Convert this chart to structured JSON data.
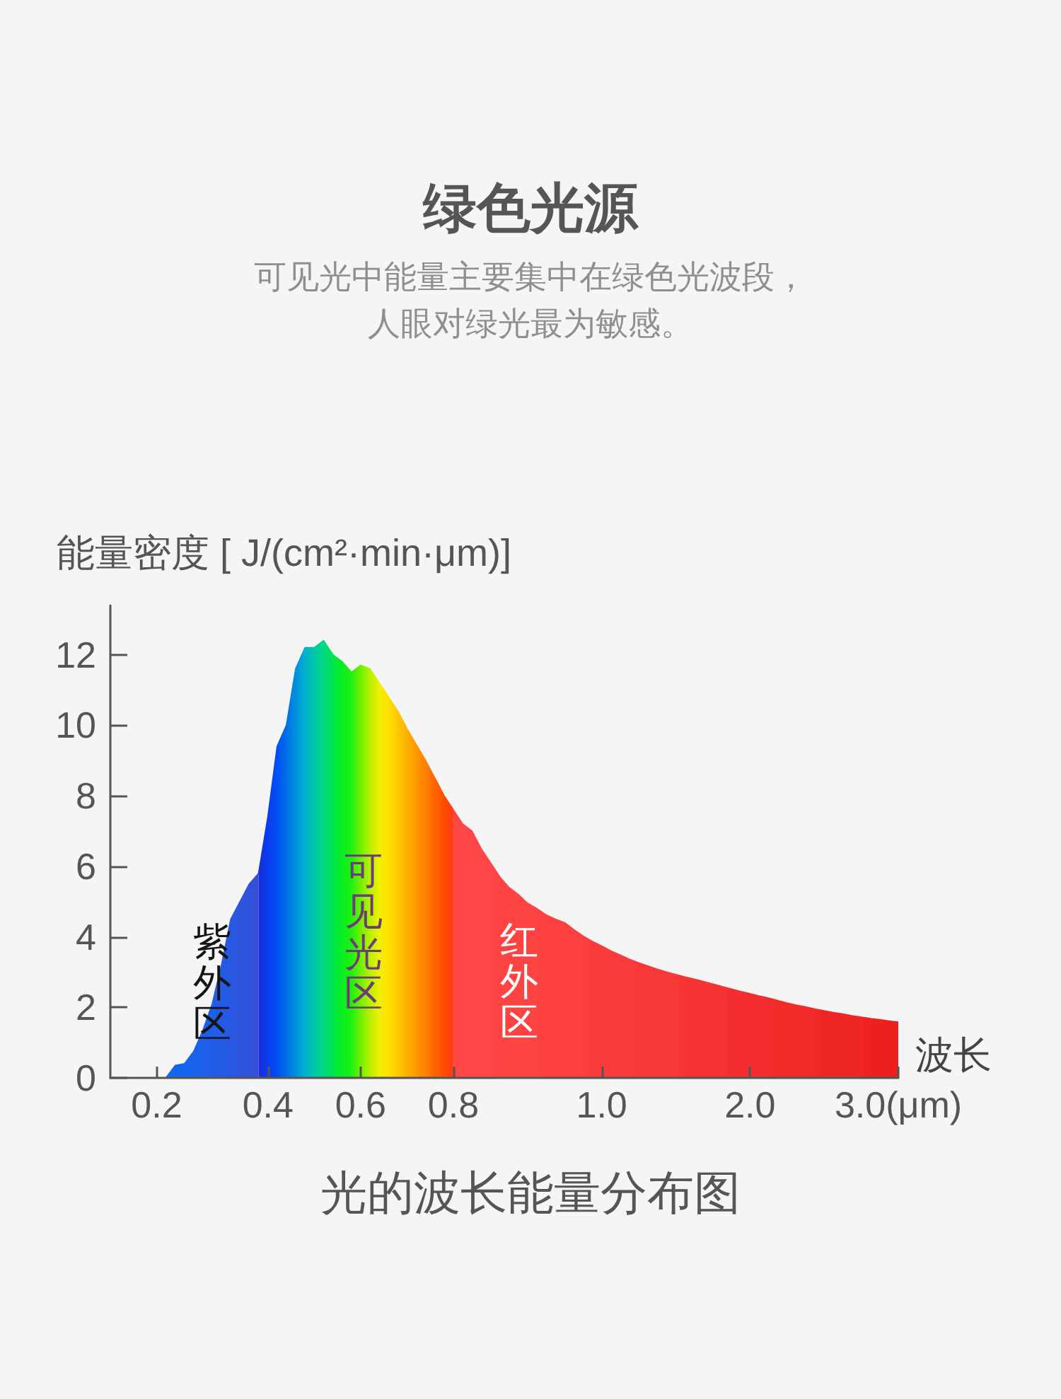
{
  "chart_data": {
    "type": "area",
    "title": "绿色光源",
    "subtitle": "可见光中能量主要集中在绿色光波段，人眼对绿光最为敏感。",
    "ylabel": "能量密度 [ J/(cm²·min·μm)]",
    "xlabel": "波长",
    "annotations": [
      "光的波长能量分布图"
    ],
    "categories": [
      null,
      null,
      null,
      null,
      null,
      "0.2",
      null,
      null,
      null,
      null,
      null,
      null,
      null,
      null,
      null,
      null,
      null,
      "0.4",
      null,
      null,
      null,
      null,
      null,
      null,
      null,
      null,
      null,
      "0.6",
      null,
      null,
      null,
      null,
      null,
      null,
      null,
      null,
      null,
      "0.8",
      null,
      null,
      null,
      null,
      null,
      null,
      null,
      null,
      null,
      null,
      null,
      null,
      null,
      null,
      null,
      "1.0",
      null,
      null,
      null,
      null,
      null,
      null,
      null,
      null,
      null,
      null,
      null,
      null,
      null,
      null,
      null,
      "2.0",
      null,
      null,
      null,
      null,
      null,
      null,
      null,
      null,
      null,
      null,
      null,
      null,
      null,
      null,
      null,
      "3.0(μm)"
    ],
    "series": [
      {
        "name": "紫外区",
        "values": [
          null,
          null,
          null,
          null,
          null,
          null,
          0,
          0.35,
          0.4,
          0.75,
          1.35,
          2.1,
          3.2,
          4.5,
          5.0,
          5.5,
          5.8,
          null,
          null,
          null,
          null,
          null,
          null,
          null,
          null,
          null,
          null,
          null,
          null,
          null,
          null,
          null,
          null,
          null,
          null,
          null,
          null,
          null,
          null,
          null,
          null,
          null,
          null,
          null,
          null,
          null,
          null,
          null,
          null,
          null,
          null,
          null,
          null,
          null,
          null,
          null,
          null,
          null,
          null,
          null,
          null,
          null,
          null,
          null,
          null,
          null,
          null,
          null,
          null,
          null,
          null,
          null,
          null,
          null,
          null,
          null,
          null,
          null,
          null,
          null,
          null,
          null,
          null,
          null,
          null,
          null
        ],
        "colors": [
          null,
          null,
          null,
          null,
          null,
          null,
          "#0d68f2",
          "#1066f0",
          "#1464ee",
          "#1862ec",
          "#1c60ea",
          "#205ee8",
          "#245be5",
          "#2858e2",
          "#2c55de",
          "#3052da",
          "#3350d6",
          null,
          null,
          null,
          null,
          null,
          null,
          null,
          null,
          null,
          null,
          null,
          null,
          null,
          null,
          null,
          null,
          null,
          null,
          null,
          null,
          null,
          null,
          null,
          null,
          null,
          null,
          null,
          null,
          null,
          null,
          null,
          null,
          null,
          null,
          null,
          null,
          null,
          null,
          null,
          null,
          null,
          null,
          null,
          null,
          null,
          null,
          null,
          null,
          null,
          null,
          null,
          null,
          null,
          null,
          null,
          null,
          null,
          null,
          null,
          null,
          null,
          null,
          null,
          null,
          null,
          null,
          null,
          null,
          null
        ]
      },
      {
        "name": "可见光区",
        "values": [
          null,
          null,
          null,
          null,
          null,
          null,
          null,
          null,
          null,
          null,
          null,
          null,
          null,
          null,
          null,
          null,
          5.8,
          7.4,
          9.4,
          10.0,
          11.6,
          12.2,
          12.2,
          12.4,
          12.0,
          11.8,
          11.5,
          11.7,
          11.6,
          11.2,
          10.8,
          10.4,
          9.9,
          9.45,
          9.0,
          8.5,
          8.0,
          7.6,
          null,
          null,
          null,
          null,
          null,
          null,
          null,
          null,
          null,
          null,
          null,
          null,
          null,
          null,
          null,
          null,
          null,
          null,
          null,
          null,
          null,
          null,
          null,
          null,
          null,
          null,
          null,
          null,
          null,
          null,
          null,
          null,
          null,
          null,
          null,
          null,
          null,
          null,
          null,
          null,
          null,
          null,
          null,
          null,
          null,
          null,
          null,
          null
        ],
        "colors": [
          null,
          null,
          null,
          null,
          null,
          null,
          null,
          null,
          null,
          null,
          null,
          null,
          null,
          null,
          null,
          null,
          "#1a2fd6",
          "#0a3cf2",
          "#0050f4",
          "#0070e8",
          "#0090dc",
          "#00b0cc",
          "#00c8a8",
          "#00d880",
          "#00e450",
          "#08ee20",
          "#20f010",
          "#70f000",
          "#b8f000",
          "#f0f000",
          "#ffe000",
          "#ffc800",
          "#ffb000",
          "#ff9800",
          "#ff8000",
          "#ff6400",
          "#ff4c00",
          "#ff3a10",
          null,
          null,
          null,
          null,
          null,
          null,
          null,
          null,
          null,
          null,
          null,
          null,
          null,
          null,
          null,
          null,
          null,
          null,
          null,
          null,
          null,
          null,
          null,
          null,
          null,
          null,
          null,
          null,
          null,
          null,
          null,
          null,
          null,
          null,
          null,
          null,
          null,
          null,
          null,
          null,
          null,
          null,
          null,
          null,
          null,
          null,
          null,
          null
        ]
      },
      {
        "name": "红外区",
        "values": [
          null,
          null,
          null,
          null,
          null,
          null,
          null,
          null,
          null,
          null,
          null,
          null,
          null,
          null,
          null,
          null,
          null,
          null,
          null,
          null,
          null,
          null,
          null,
          null,
          null,
          null,
          null,
          null,
          null,
          null,
          null,
          null,
          null,
          null,
          null,
          null,
          null,
          7.6,
          7.2,
          7.0,
          6.5,
          6.1,
          5.7,
          5.4,
          5.2,
          4.95,
          4.8,
          4.62,
          4.5,
          4.4,
          4.2,
          4.02,
          3.87,
          3.74,
          3.6,
          3.48,
          3.36,
          3.26,
          3.17,
          3.08,
          3.0,
          2.93,
          2.86,
          2.8,
          2.73,
          2.66,
          2.59,
          2.52,
          2.45,
          2.39,
          2.32,
          2.26,
          2.19,
          2.12,
          2.06,
          2.01,
          1.95,
          1.9,
          1.85,
          1.81,
          1.76,
          1.72,
          1.68,
          1.65,
          1.61,
          1.58
        ],
        "colors": [
          null,
          null,
          null,
          null,
          null,
          null,
          null,
          null,
          null,
          null,
          null,
          null,
          null,
          null,
          null,
          null,
          null,
          null,
          null,
          null,
          null,
          null,
          null,
          null,
          null,
          null,
          null,
          null,
          null,
          null,
          null,
          null,
          null,
          null,
          null,
          null,
          null,
          "#ff4646",
          "#ff4646",
          "#ff4646",
          "#ff4646",
          "#ff4646",
          "#fe4343",
          "#fe4343",
          "#fe4343",
          "#fe4343",
          "#fe4343",
          "#fc3f3f",
          "#fc3f3f",
          "#fc3f3f",
          "#fc3f3f",
          "#fc3f3f",
          "#fa3b3b",
          "#fa3b3b",
          "#fa3b3b",
          "#fa3b3b",
          "#fa3b3b",
          "#f83737",
          "#f83737",
          "#f83737",
          "#f83737",
          "#f83737",
          "#f63333",
          "#f63333",
          "#f63333",
          "#f63333",
          "#f63333",
          "#f42e2e",
          "#f42e2e",
          "#f42e2e",
          "#f42e2e",
          "#f42e2e",
          "#f22a2a",
          "#f22a2a",
          "#f22a2a",
          "#f22a2a",
          "#f22a2a",
          "#f02525",
          "#f02525",
          "#f02525",
          "#f02525",
          "#f02525",
          "#ee1f1f",
          "#ee1f1f",
          "#ee1f1f",
          "#ee1f1f"
        ]
      }
    ],
    "ylim": [
      0,
      13.4
    ],
    "yticks": [
      0,
      2,
      4,
      6,
      8,
      10,
      12
    ]
  }
}
